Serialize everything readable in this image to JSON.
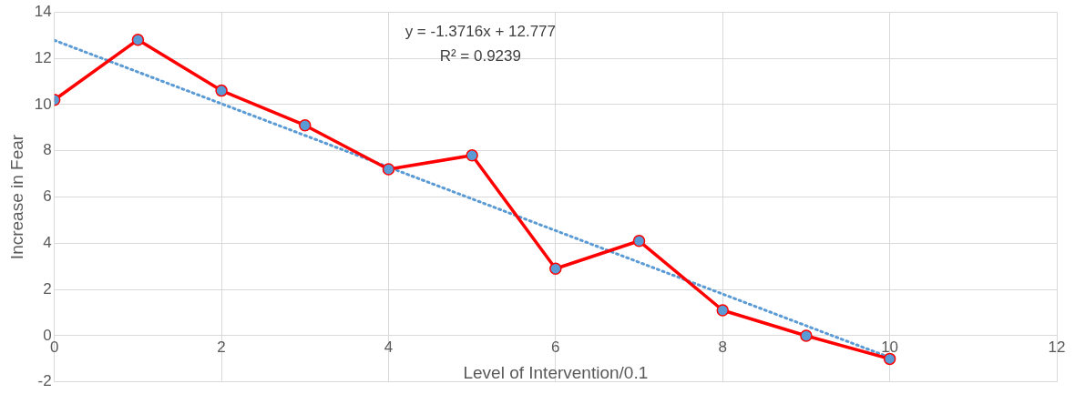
{
  "chart_data": {
    "type": "line",
    "xlabel": "Level of Intervention/0.1",
    "ylabel": "Increase in Fear",
    "x": [
      0,
      1,
      2,
      3,
      4,
      5,
      6,
      7,
      8,
      9,
      10
    ],
    "xlim": [
      0,
      12
    ],
    "xticks": [
      0,
      2,
      4,
      6,
      8,
      10,
      12
    ],
    "ylim": [
      -2,
      14
    ],
    "yticks": [
      -2,
      0,
      2,
      4,
      6,
      8,
      10,
      12,
      14
    ],
    "grid": true,
    "legend": false,
    "annotations": [
      "y = -1.3716x + 12.777",
      "R² = 0.9239"
    ],
    "series": [
      {
        "color": "#ff0000",
        "values": [
          10.2,
          12.8,
          10.6,
          9.1,
          7.2,
          7.8,
          2.9,
          4.1,
          1.1,
          0,
          -1.0
        ],
        "marker": "circle",
        "line_style": "solid"
      },
      {
        "type": "line",
        "x": [
          0,
          10
        ],
        "values": [
          12.777,
          -0.939
        ],
        "color": "#5b9bd5",
        "marker": "none",
        "line_style": "dotted"
      }
    ]
  }
}
